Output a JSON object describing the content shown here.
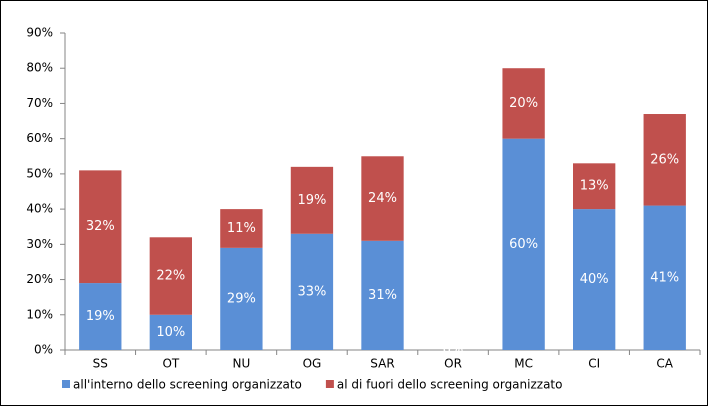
{
  "chart_data": {
    "type": "stacked-bar",
    "categories": [
      "SS",
      "OT",
      "NU",
      "OG",
      "SAR",
      "OR",
      "MC",
      "CI",
      "CA"
    ],
    "series": [
      {
        "name": "all'interno dello screening organizzato",
        "color": "#5a8fd6",
        "values": [
          19,
          10,
          29,
          33,
          31,
          0,
          60,
          40,
          41
        ],
        "value_labels": [
          "19%",
          "10%",
          "29%",
          "33%",
          "31%",
          "0%",
          "60%",
          "40%",
          "41%"
        ]
      },
      {
        "name": "al di fuori dello screening organizzato",
        "color": "#c0504d",
        "values": [
          32,
          22,
          11,
          19,
          24,
          0,
          20,
          13,
          26
        ],
        "value_labels": [
          "32%",
          "22%",
          "11%",
          "19%",
          "24%",
          "0%",
          "20%",
          "13%",
          "26%"
        ]
      }
    ],
    "ylim": [
      0,
      90
    ],
    "yticks": [
      {
        "value": 0,
        "label": "0%"
      },
      {
        "value": 10,
        "label": "10%"
      },
      {
        "value": 20,
        "label": "20%"
      },
      {
        "value": 30,
        "label": "30%"
      },
      {
        "value": 40,
        "label": "40%"
      },
      {
        "value": 50,
        "label": "50%"
      },
      {
        "value": 60,
        "label": "60%"
      },
      {
        "value": 70,
        "label": "70%"
      },
      {
        "value": 80,
        "label": "80%"
      },
      {
        "value": 90,
        "label": "90%"
      }
    ],
    "grid": false,
    "legend": "bottom"
  }
}
